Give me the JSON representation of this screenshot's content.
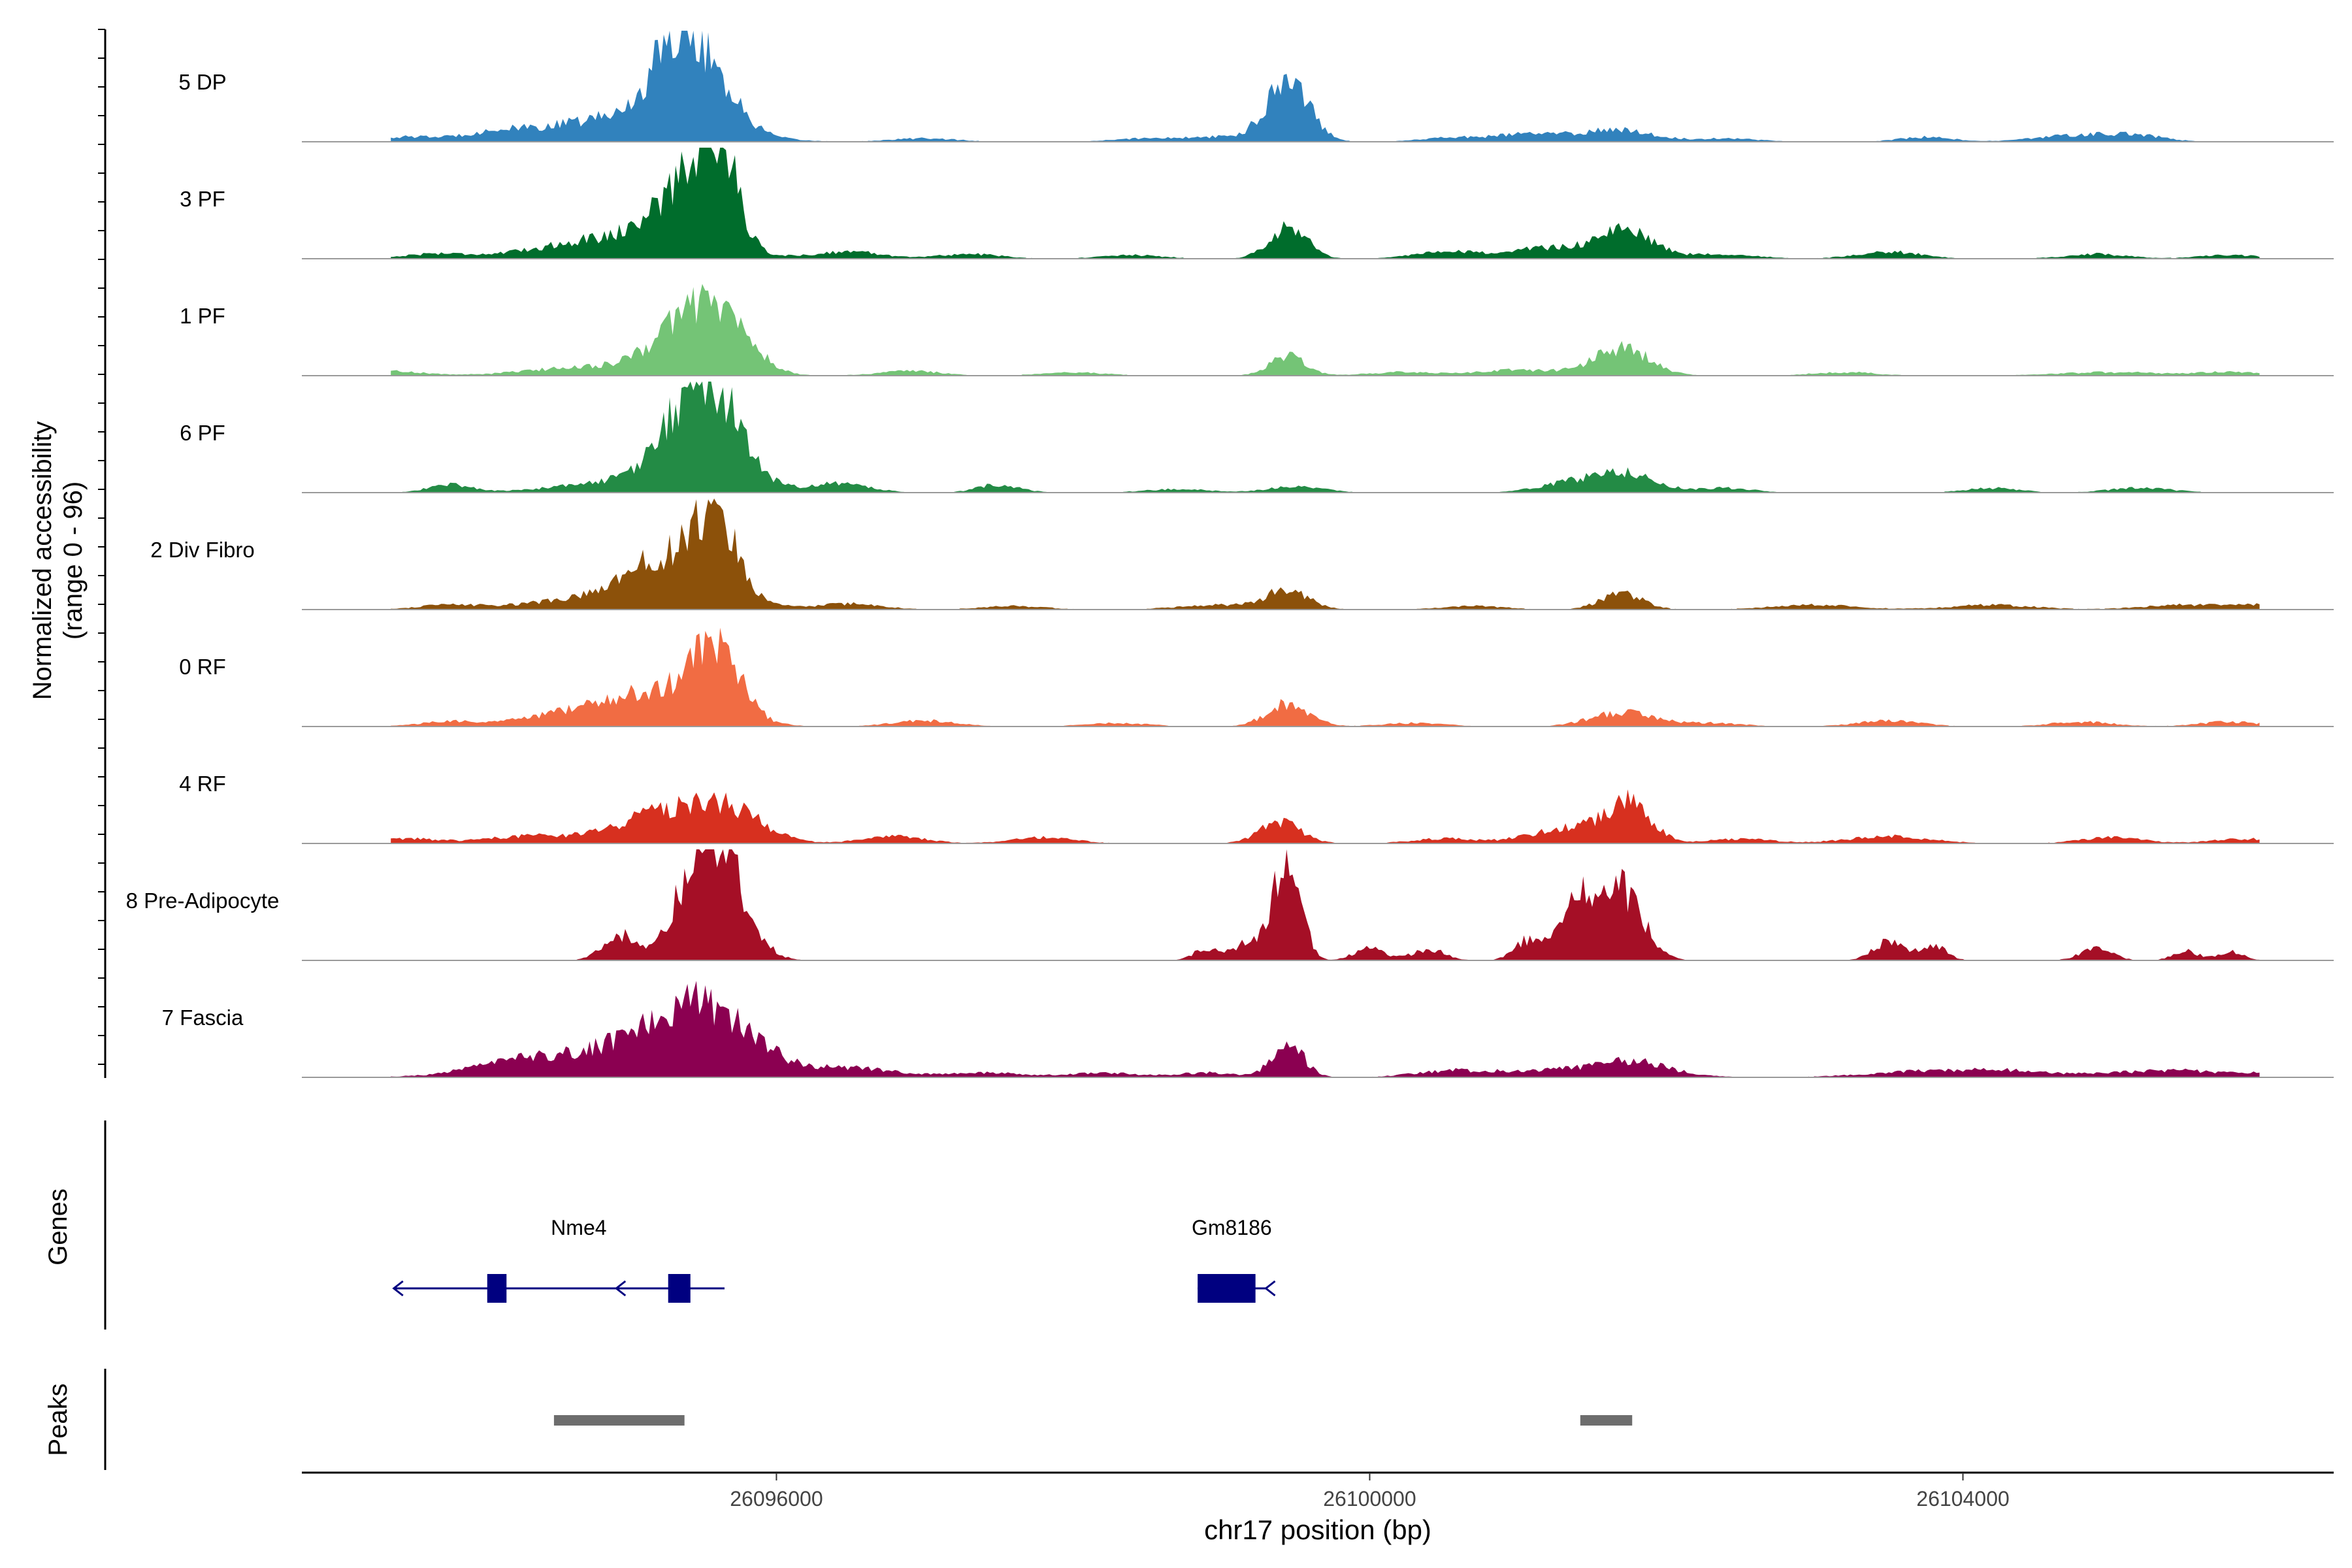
{
  "chart_data": {
    "type": "area",
    "title": "",
    "ylabel_line1": "Normalized accessibility",
    "ylabel_line2": "(range 0 - 96)",
    "xlabel": "chr17 position (bp)",
    "xlim": [
      26092800,
      26106500
    ],
    "ylim": [
      0,
      96
    ],
    "x_ticks": [
      {
        "value": 26096000,
        "label": "26096000"
      },
      {
        "value": 26100000,
        "label": "26100000"
      },
      {
        "value": 26104000,
        "label": "26104000"
      }
    ],
    "series": [
      {
        "name": "5 DP",
        "color": "#3182bd",
        "peaks": [
          [
            26095000,
            22,
            700
          ],
          [
            26095450,
            66,
            300
          ],
          [
            26095300,
            28,
            200
          ],
          [
            26099450,
            55,
            200
          ],
          [
            26094100,
            6,
            300
          ],
          [
            26101100,
            7,
            400
          ],
          [
            26101700,
            10,
            300
          ],
          [
            26103750,
            4,
            250
          ],
          [
            26104800,
            6,
            400
          ],
          [
            26105200,
            4,
            250
          ],
          [
            26093500,
            4,
            300
          ],
          [
            26097000,
            3,
            300
          ],
          [
            26098500,
            3,
            300
          ],
          [
            26099000,
            4,
            300
          ],
          [
            26102400,
            3,
            300
          ],
          [
            26100500,
            3,
            250
          ]
        ]
      },
      {
        "name": "3 PF",
        "color": "#006d2c",
        "peaks": [
          [
            26095000,
            20,
            700
          ],
          [
            26095600,
            90,
            180
          ],
          [
            26095350,
            42,
            260
          ],
          [
            26096500,
            6,
            300
          ],
          [
            26097300,
            4,
            300
          ],
          [
            26099450,
            28,
            180
          ],
          [
            26100500,
            5,
            300
          ],
          [
            26101300,
            10,
            500
          ],
          [
            26101750,
            20,
            250
          ],
          [
            26103500,
            6,
            300
          ],
          [
            26102400,
            4,
            300
          ],
          [
            26093700,
            4,
            300
          ],
          [
            26098400,
            3,
            300
          ],
          [
            26104900,
            4,
            300
          ],
          [
            26105800,
            3,
            300
          ]
        ]
      },
      {
        "name": "1 PF",
        "color": "#74c476",
        "peaks": [
          [
            26094800,
            8,
            600
          ],
          [
            26095450,
            52,
            330
          ],
          [
            26095700,
            22,
            250
          ],
          [
            26096900,
            4,
            300
          ],
          [
            26099450,
            18,
            170
          ],
          [
            26101000,
            5,
            400
          ],
          [
            26101700,
            24,
            260
          ],
          [
            26093400,
            4,
            300
          ],
          [
            26098000,
            3,
            300
          ],
          [
            26100200,
            3,
            300
          ],
          [
            26105000,
            3,
            500
          ],
          [
            26105800,
            3,
            300
          ],
          [
            26103200,
            3,
            300
          ]
        ]
      },
      {
        "name": "6 PF",
        "color": "#238b45",
        "peaks": [
          [
            26095000,
            10,
            600
          ],
          [
            26095450,
            72,
            300
          ],
          [
            26095650,
            36,
            260
          ],
          [
            26096400,
            8,
            300
          ],
          [
            26097500,
            7,
            200
          ],
          [
            26099500,
            6,
            250
          ],
          [
            26101700,
            18,
            300
          ],
          [
            26101300,
            6,
            300
          ],
          [
            26093800,
            7,
            200
          ],
          [
            26102400,
            4,
            250
          ],
          [
            26104200,
            4,
            250
          ],
          [
            26105200,
            4,
            300
          ],
          [
            26098700,
            3,
            300
          ]
        ]
      },
      {
        "name": "2 Div Fibro",
        "color": "#8c510a",
        "peaks": [
          [
            26095300,
            48,
            450
          ],
          [
            26095600,
            58,
            180
          ],
          [
            26094500,
            6,
            400
          ],
          [
            26099450,
            16,
            200
          ],
          [
            26099000,
            4,
            400
          ],
          [
            26101700,
            14,
            200
          ],
          [
            26096500,
            5,
            300
          ],
          [
            26093800,
            4,
            300
          ],
          [
            26103000,
            4,
            400
          ],
          [
            26104200,
            4,
            400
          ],
          [
            26105500,
            4,
            400
          ],
          [
            26106100,
            4,
            300
          ],
          [
            26097600,
            3,
            300
          ],
          [
            26100700,
            3,
            300
          ]
        ]
      },
      {
        "name": "0 RF",
        "color": "#f16c43",
        "peaks": [
          [
            26095200,
            30,
            500
          ],
          [
            26095600,
            58,
            220
          ],
          [
            26094500,
            8,
            400
          ],
          [
            26099450,
            20,
            200
          ],
          [
            26101700,
            12,
            300
          ],
          [
            26097000,
            5,
            300
          ],
          [
            26093800,
            4,
            300
          ],
          [
            26103500,
            5,
            300
          ],
          [
            26100300,
            3,
            300
          ],
          [
            26102300,
            3,
            300
          ],
          [
            26104800,
            4,
            300
          ],
          [
            26105800,
            4,
            300
          ],
          [
            26098300,
            3,
            300
          ]
        ]
      },
      {
        "name": "4 RF",
        "color": "#d7301f",
        "peaks": [
          [
            26095300,
            28,
            500
          ],
          [
            26095700,
            18,
            300
          ],
          [
            26094300,
            6,
            400
          ],
          [
            26099400,
            18,
            200
          ],
          [
            26101400,
            14,
            400
          ],
          [
            26101750,
            30,
            200
          ],
          [
            26096800,
            6,
            300
          ],
          [
            26097800,
            5,
            300
          ],
          [
            26103500,
            6,
            400
          ],
          [
            26105000,
            5,
            300
          ],
          [
            26093500,
            4,
            300
          ],
          [
            26100500,
            4,
            300
          ],
          [
            26102500,
            4,
            300
          ],
          [
            26105900,
            4,
            300
          ]
        ]
      },
      {
        "name": "8 Pre-Adipocyte",
        "color": "#a50f26",
        "peaks": [
          [
            26094950,
            22,
            160
          ],
          [
            26095600,
            96,
            250
          ],
          [
            26095400,
            30,
            200
          ],
          [
            26099450,
            96,
            120
          ],
          [
            26099200,
            16,
            150
          ],
          [
            26101400,
            50,
            180
          ],
          [
            26101700,
            60,
            200
          ],
          [
            26101050,
            16,
            120
          ],
          [
            26100000,
            10,
            150
          ],
          [
            26100400,
            10,
            150
          ],
          [
            26103500,
            16,
            150
          ],
          [
            26103800,
            14,
            120
          ],
          [
            26104900,
            10,
            150
          ],
          [
            26105500,
            8,
            120
          ],
          [
            26105800,
            8,
            120
          ],
          [
            26098900,
            10,
            120
          ]
        ]
      },
      {
        "name": "7 Fascia",
        "color": "#8b0051",
        "peaks": [
          [
            26095200,
            30,
            900
          ],
          [
            26095500,
            40,
            400
          ],
          [
            26094200,
            6,
            400
          ],
          [
            26099450,
            28,
            150
          ],
          [
            26101300,
            7,
            700
          ],
          [
            26101800,
            10,
            300
          ],
          [
            26096600,
            5,
            300
          ],
          [
            26097400,
            4,
            400
          ],
          [
            26098200,
            4,
            300
          ],
          [
            26098900,
            4,
            300
          ],
          [
            26100500,
            4,
            300
          ],
          [
            26103700,
            5,
            500
          ],
          [
            26104300,
            5,
            400
          ],
          [
            26105400,
            6,
            600
          ],
          [
            26106100,
            3,
            200
          ]
        ]
      }
    ],
    "genes": [
      {
        "name": "Nme4",
        "strand": "-",
        "start": 26093420,
        "end": 26095650,
        "exons": [
          [
            26094050,
            26094180
          ],
          [
            26095270,
            26095420
          ]
        ]
      },
      {
        "name": "Gm8186",
        "strand": "-",
        "start": 26098840,
        "end": 26099300,
        "exons": [
          [
            26098840,
            26099230
          ]
        ]
      }
    ],
    "peaks_track": [
      [
        26094500,
        26095380
      ],
      [
        26101420,
        26101770
      ]
    ],
    "track_labels": {
      "genes": "Genes",
      "peaks": "Peaks"
    }
  }
}
